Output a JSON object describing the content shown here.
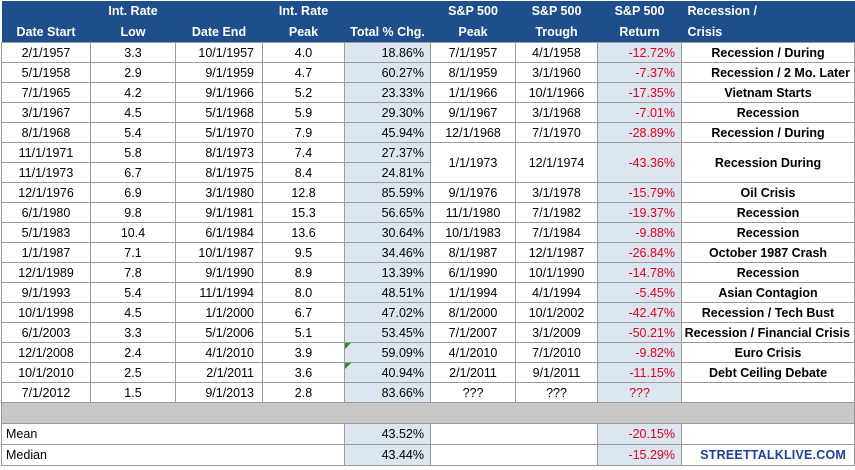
{
  "headers": {
    "row1": [
      "",
      "Int. Rate",
      "",
      "Int. Rate",
      "",
      "S&P 500",
      "S&P 500",
      "S&P 500",
      "Recession /"
    ],
    "row2": [
      "Date Start",
      "Low",
      "Date End",
      "Peak",
      "Total % Chg.",
      "Peak",
      "Trough",
      "Return",
      "Crisis"
    ]
  },
  "rows": [
    {
      "start": "2/1/1957",
      "low": "3.3",
      "end": "10/1/1957",
      "peak": "4.0",
      "chg": "18.86%",
      "sp_peak": "7/1/1957",
      "sp_trough": "4/1/1958",
      "ret": "-12.72%",
      "crisis": "Recession / During"
    },
    {
      "start": "5/1/1958",
      "low": "2.9",
      "end": "9/1/1959",
      "peak": "4.7",
      "chg": "60.27%",
      "sp_peak": "8/1/1959",
      "sp_trough": "3/1/1960",
      "ret": "-7.37%",
      "crisis": "Recession / 2 Mo. Later"
    },
    {
      "start": "7/1/1965",
      "low": "4.2",
      "end": "9/1/1966",
      "peak": "5.2",
      "chg": "23.33%",
      "sp_peak": "1/1/1966",
      "sp_trough": "10/1/1966",
      "ret": "-17.35%",
      "crisis": "Vietnam Starts"
    },
    {
      "start": "3/1/1967",
      "low": "4.5",
      "end": "5/1/1968",
      "peak": "5.9",
      "chg": "29.30%",
      "sp_peak": "9/1/1967",
      "sp_trough": "3/1/1968",
      "ret": "-7.01%",
      "crisis": "Recession"
    },
    {
      "start": "8/1/1968",
      "low": "5.4",
      "end": "5/1/1970",
      "peak": "7.9",
      "chg": "45.94%",
      "sp_peak": "12/1/1968",
      "sp_trough": "7/1/1970",
      "ret": "-28.89%",
      "crisis": "Recession / During"
    },
    {
      "start": "11/1/1971",
      "low": "5.8",
      "end": "8/1/1973",
      "peak": "7.4",
      "chg": "27.37%"
    },
    {
      "start": "11/1/1973",
      "low": "6.7",
      "end": "8/1/1975",
      "peak": "8.4",
      "chg": "24.81%"
    },
    {
      "start": "12/1/1976",
      "low": "6.9",
      "end": "3/1/1980",
      "peak": "12.8",
      "chg": "85.59%",
      "sp_peak": "9/1/1976",
      "sp_trough": "3/1/1978",
      "ret": "-15.79%",
      "crisis": "Oil Crisis"
    },
    {
      "start": "6/1/1980",
      "low": "9.8",
      "end": "9/1/1981",
      "peak": "15.3",
      "chg": "56.65%",
      "sp_peak": "11/1/1980",
      "sp_trough": "7/1/1982",
      "ret": "-19.37%",
      "crisis": "Recession"
    },
    {
      "start": "5/1/1983",
      "low": "10.4",
      "end": "6/1/1984",
      "peak": "13.6",
      "chg": "30.64%",
      "sp_peak": "10/1/1983",
      "sp_trough": "7/1/1984",
      "ret": "-9.88%",
      "crisis": "Recession"
    },
    {
      "start": "1/1/1987",
      "low": "7.1",
      "end": "10/1/1987",
      "peak": "9.5",
      "chg": "34.46%",
      "sp_peak": "8/1/1987",
      "sp_trough": "12/1/1987",
      "ret": "-26.84%",
      "crisis": "October 1987 Crash"
    },
    {
      "start": "12/1/1989",
      "low": "7.8",
      "end": "9/1/1990",
      "peak": "8.9",
      "chg": "13.39%",
      "sp_peak": "6/1/1990",
      "sp_trough": "10/1/1990",
      "ret": "-14.78%",
      "crisis": "Recession"
    },
    {
      "start": "9/1/1993",
      "low": "5.4",
      "end": "11/1/1994",
      "peak": "8.0",
      "chg": "48.51%",
      "sp_peak": "1/1/1994",
      "sp_trough": "4/1/1994",
      "ret": "-5.45%",
      "crisis": "Asian Contagion"
    },
    {
      "start": "10/1/1998",
      "low": "4.5",
      "end": "1/1/2000",
      "peak": "6.7",
      "chg": "47.02%",
      "sp_peak": "8/1/2000",
      "sp_trough": "10/1/2002",
      "ret": "-42.47%",
      "crisis": "Recession / Tech Bust"
    },
    {
      "start": "6/1/2003",
      "low": "3.3",
      "end": "5/1/2006",
      "peak": "5.1",
      "chg": "53.45%",
      "sp_peak": "7/1/2007",
      "sp_trough": "3/1/2009",
      "ret": "-50.21%",
      "crisis": "Recession / Financial Crisis"
    },
    {
      "start": "12/1/2008",
      "low": "2.4",
      "end": "4/1/2010",
      "peak": "3.9",
      "chg": "59.09%",
      "sp_peak": "4/1/2010",
      "sp_trough": "7/1/2010",
      "ret": "-9.82%",
      "crisis": "Euro Crisis"
    },
    {
      "start": "10/1/2010",
      "low": "2.5",
      "end": "2/1/2011",
      "peak": "3.6",
      "chg": "40.94%",
      "sp_peak": "2/1/2011",
      "sp_trough": "9/1/2011",
      "ret": "-11.15%",
      "crisis": "Debt Ceiling Debate"
    },
    {
      "start": "7/1/2012",
      "low": "1.5",
      "end": "9/1/2013",
      "peak": "2.8",
      "chg": "83.66%",
      "sp_peak": "???",
      "sp_trough": "???",
      "ret": "???",
      "crisis": ""
    }
  ],
  "merged": {
    "sp_peak": "1/1/1973",
    "sp_trough": "12/1/1974",
    "ret": "-43.36%",
    "crisis": "Recession During"
  },
  "stats": {
    "mean": {
      "label": "Mean",
      "chg": "43.52%",
      "ret": "-20.15%"
    },
    "median": {
      "label": "Median",
      "chg": "43.44%",
      "ret": "-15.29%"
    }
  },
  "logo": "STREETTALKLIVE.COM",
  "colors": {
    "header_bg": "#1f4e8c",
    "highlight_bg": "#dce6f1",
    "negative": "#e0001b",
    "logo": "#1f3f99"
  }
}
